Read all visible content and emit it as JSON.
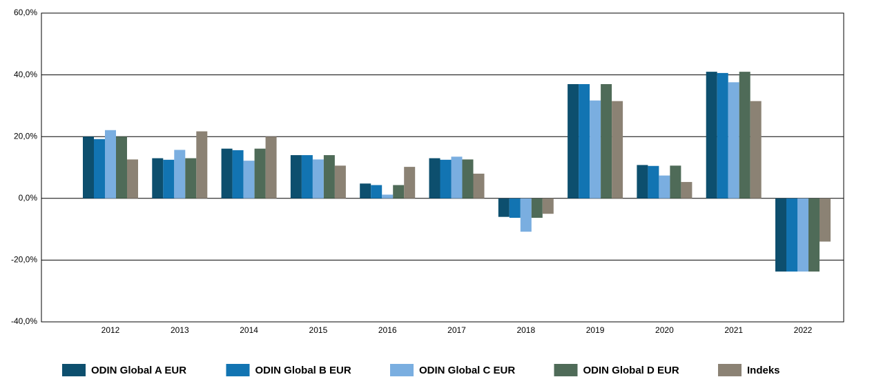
{
  "chart_data": {
    "type": "bar",
    "categories": [
      "2012",
      "2013",
      "2014",
      "2015",
      "2016",
      "2017",
      "2018",
      "2019",
      "2020",
      "2021",
      "2022"
    ],
    "series": [
      {
        "name": "ODIN Global A EUR",
        "color": "#0d4f6e",
        "values": [
          20,
          13,
          16.1,
          14,
          4.8,
          13,
          -6,
          37,
          10.8,
          41,
          -23.7
        ]
      },
      {
        "name": "ODIN Global B EUR",
        "color": "#1274b2",
        "values": [
          19.2,
          12.5,
          15.6,
          14,
          4.3,
          12.5,
          -6.3,
          37,
          10.5,
          40.6,
          -23.7
        ]
      },
      {
        "name": "ODIN Global C EUR",
        "color": "#7aaee0",
        "values": [
          22.1,
          15.7,
          12.2,
          12.6,
          1.2,
          13.5,
          -10.8,
          31.7,
          7.4,
          37.6,
          -23.7
        ]
      },
      {
        "name": "ODIN Global D EUR",
        "color": "#4f6b58",
        "values": [
          20,
          13,
          16.1,
          14,
          4.3,
          12.6,
          -6.3,
          37,
          10.6,
          41,
          -23.7
        ]
      },
      {
        "name": "Indeks",
        "color": "#8b8274",
        "values": [
          12.6,
          21.7,
          20,
          10.6,
          10.2,
          8,
          -5,
          31.5,
          5.3,
          31.5,
          -14
        ]
      }
    ],
    "ylim": [
      -40,
      60
    ],
    "yticks": [
      {
        "value": -40,
        "label": "-40,0%"
      },
      {
        "value": -20,
        "label": "-20,0%"
      },
      {
        "value": 0,
        "label": "0,0%"
      },
      {
        "value": 20,
        "label": "20,0%"
      },
      {
        "value": 40,
        "label": "40,0%"
      },
      {
        "value": 60,
        "label": "60,0%"
      }
    ],
    "grid": true,
    "legend": "bottom"
  }
}
